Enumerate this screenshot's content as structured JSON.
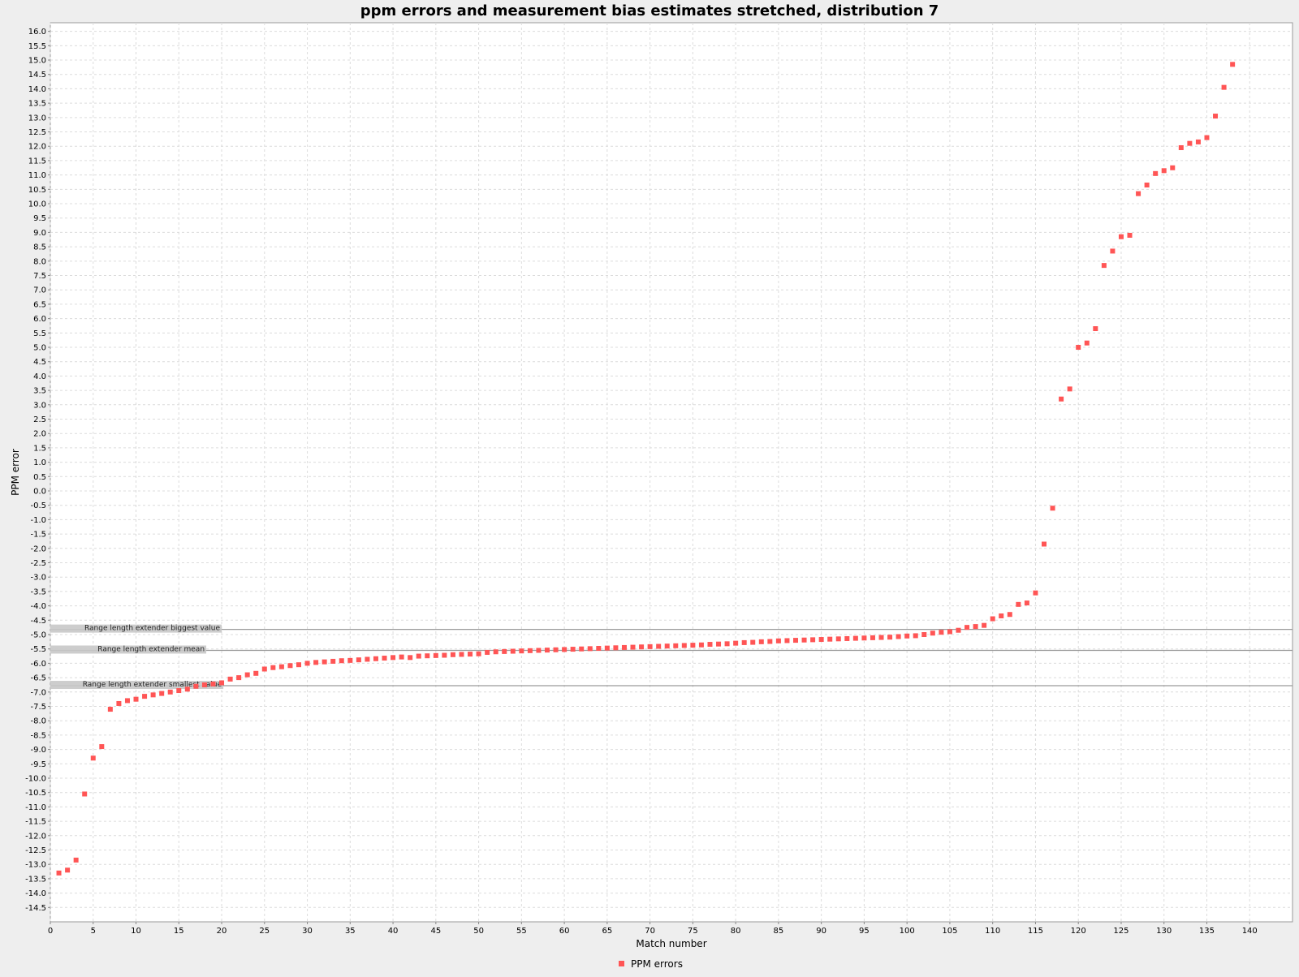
{
  "chart_data": {
    "type": "scatter",
    "title": "ppm errors and measurement bias estimates stretched, distribution 7",
    "xlabel": "Match number",
    "ylabel": "PPM error",
    "xlim": [
      0,
      145
    ],
    "ylim": [
      -15,
      16.3
    ],
    "x_ticks": [
      0,
      5,
      10,
      15,
      20,
      25,
      30,
      35,
      40,
      45,
      50,
      55,
      60,
      65,
      70,
      75,
      80,
      85,
      90,
      95,
      100,
      105,
      110,
      115,
      120,
      125,
      130,
      135,
      140
    ],
    "y_ticks": [
      16.0,
      15.5,
      15.0,
      14.5,
      14.0,
      13.5,
      13.0,
      12.5,
      12.0,
      11.5,
      11.0,
      10.5,
      10.0,
      9.5,
      9.0,
      8.5,
      8.0,
      7.5,
      7.0,
      6.5,
      6.0,
      5.5,
      5.0,
      4.5,
      4.0,
      3.5,
      3.0,
      2.5,
      2.0,
      1.5,
      1.0,
      0.5,
      0.0,
      -0.5,
      -1.0,
      -1.5,
      -2.0,
      -2.5,
      -3.0,
      -3.5,
      -4.0,
      -4.5,
      -5.0,
      -5.5,
      -6.0,
      -6.5,
      -7.0,
      -7.5,
      -8.0,
      -8.5,
      -9.0,
      -9.5,
      -10.0,
      -10.5,
      -11.0,
      -11.5,
      -12.0,
      -12.5,
      -13.0,
      -13.5,
      -14.0,
      -14.5
    ],
    "y_tick_labels": [
      "16.0",
      "15.5",
      "15.0",
      "14.5",
      "14.0",
      "13.5",
      "13.0",
      "12.5",
      "12.0",
      "11.5",
      "11.0",
      "10.5",
      "10.0",
      "9.5",
      "9.0",
      "8.5",
      "8.0",
      "7.5",
      "7.0",
      "6.5",
      "6.0",
      "5.5",
      "5.0",
      "4.5",
      "4.0",
      "3.5",
      "3.0",
      "2.5",
      "2.0",
      "1.5",
      "1.0",
      "0.5",
      "0.0",
      "-0.5",
      "-1.0",
      "-1.5",
      "-2.0",
      "-2.5",
      "-3.0",
      "-3.5",
      "-4.0",
      "-4.5",
      "-5.0",
      "-5.5",
      "-6.0",
      "-6.5",
      "-7.0",
      "-7.5",
      "-8.0",
      "-8.5",
      "-9.0",
      "-9.5",
      "-10.0",
      "-10.5",
      "-11.0",
      "-11.5",
      "-12.0",
      "-12.5",
      "-13.0",
      "-13.5",
      "-14.0",
      "-14.5"
    ],
    "grid": true,
    "legend_position": "bottom-center",
    "series": [
      {
        "name": "PPM errors",
        "color": "#ff5555",
        "marker": "square",
        "x": [
          1,
          2,
          3,
          4,
          5,
          6,
          7,
          8,
          9,
          10,
          11,
          12,
          13,
          14,
          15,
          16,
          17,
          18,
          19,
          20,
          21,
          22,
          23,
          24,
          25,
          26,
          27,
          28,
          29,
          30,
          31,
          32,
          33,
          34,
          35,
          36,
          37,
          38,
          39,
          40,
          41,
          42,
          43,
          44,
          45,
          46,
          47,
          48,
          49,
          50,
          51,
          52,
          53,
          54,
          55,
          56,
          57,
          58,
          59,
          60,
          61,
          62,
          63,
          64,
          65,
          66,
          67,
          68,
          69,
          70,
          71,
          72,
          73,
          74,
          75,
          76,
          77,
          78,
          79,
          80,
          81,
          82,
          83,
          84,
          85,
          86,
          87,
          88,
          89,
          90,
          91,
          92,
          93,
          94,
          95,
          96,
          97,
          98,
          99,
          100,
          101,
          102,
          103,
          104,
          105,
          106,
          107,
          108,
          109,
          110,
          111,
          112,
          113,
          114,
          115,
          116,
          117,
          118,
          119,
          120,
          121,
          122,
          123,
          124,
          125,
          126,
          127,
          128,
          129,
          130,
          131,
          132,
          133,
          134,
          135,
          136,
          137,
          138
        ],
        "y": [
          -13.3,
          -13.2,
          -12.85,
          -10.55,
          -9.3,
          -8.9,
          -7.6,
          -7.4,
          -7.3,
          -7.25,
          -7.15,
          -7.1,
          -7.05,
          -7.0,
          -6.95,
          -6.9,
          -6.8,
          -6.75,
          -6.72,
          -6.68,
          -6.55,
          -6.5,
          -6.4,
          -6.35,
          -6.2,
          -6.15,
          -6.12,
          -6.08,
          -6.05,
          -6.0,
          -5.97,
          -5.95,
          -5.93,
          -5.91,
          -5.9,
          -5.88,
          -5.86,
          -5.84,
          -5.82,
          -5.8,
          -5.78,
          -5.8,
          -5.75,
          -5.74,
          -5.73,
          -5.72,
          -5.7,
          -5.69,
          -5.68,
          -5.67,
          -5.62,
          -5.6,
          -5.59,
          -5.58,
          -5.57,
          -5.56,
          -5.55,
          -5.54,
          -5.53,
          -5.52,
          -5.51,
          -5.5,
          -5.49,
          -5.48,
          -5.47,
          -5.46,
          -5.45,
          -5.44,
          -5.43,
          -5.42,
          -5.41,
          -5.4,
          -5.39,
          -5.38,
          -5.37,
          -5.36,
          -5.34,
          -5.33,
          -5.32,
          -5.3,
          -5.28,
          -5.27,
          -5.25,
          -5.24,
          -5.22,
          -5.21,
          -5.2,
          -5.19,
          -5.18,
          -5.17,
          -5.16,
          -5.15,
          -5.14,
          -5.13,
          -5.12,
          -5.11,
          -5.1,
          -5.09,
          -5.07,
          -5.05,
          -5.04,
          -5.0,
          -4.95,
          -4.92,
          -4.9,
          -4.85,
          -4.75,
          -4.72,
          -4.68,
          -4.45,
          -4.35,
          -4.3,
          -3.95,
          -3.9,
          -3.55,
          -1.85,
          -0.6,
          3.2,
          3.55,
          5.0,
          5.15,
          5.65,
          7.85,
          8.35,
          8.85,
          8.9,
          10.35,
          10.65,
          11.05,
          11.15,
          11.25,
          11.95,
          12.1,
          12.15,
          12.3,
          13.05,
          14.05,
          14.85
        ]
      }
    ],
    "annotations": [
      {
        "label": "Range length extender biggest value",
        "y": -4.82,
        "x_end": 20.0
      },
      {
        "label": "Range length extender mean",
        "y": -5.55,
        "x_end": 18.2
      },
      {
        "label": "Range length extender smallest value",
        "y": -6.78,
        "x_end": 20.2
      }
    ]
  }
}
